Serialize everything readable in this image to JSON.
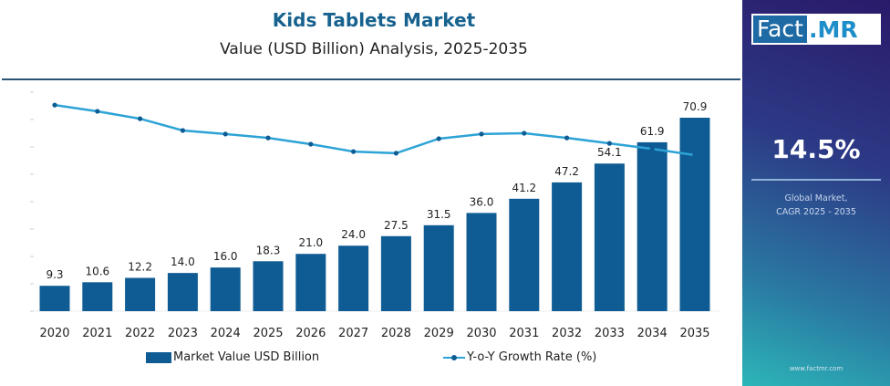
{
  "header": {
    "title": "Kids Tablets Market",
    "subtitle": "Value (USD Billion) Analysis, 2025-2035"
  },
  "panel": {
    "logo_left": "Fact",
    "logo_right": ".MR",
    "cagr": "14.5%",
    "cagr_label_1": "Global Market,",
    "cagr_label_2": "CAGR 2025 - 2035",
    "url": "www.factmr.com"
  },
  "legend": {
    "bar": "Market Value USD Billion",
    "line": "Y-o-Y Growth Rate (%)"
  },
  "colors": {
    "bar": "#0f5c94",
    "line": "#2da3d6",
    "marker": "#0f5c94",
    "title": "#17628f"
  },
  "chart_data": {
    "type": "bar+line",
    "title": "Kids Tablets Market",
    "subtitle": "Value (USD Billion) Analysis, 2025-2035",
    "categories": [
      "2020",
      "2021",
      "2022",
      "2023",
      "2024",
      "2025",
      "2026",
      "2027",
      "2028",
      "2029",
      "2030",
      "2031",
      "2032",
      "2033",
      "2034",
      "2035"
    ],
    "series": [
      {
        "name": "Market Value USD Billion",
        "type": "bar",
        "values": [
          9.3,
          10.6,
          12.2,
          14.0,
          16.0,
          18.3,
          21.0,
          24.0,
          27.5,
          31.5,
          36.0,
          41.2,
          47.2,
          54.1,
          61.9,
          70.9
        ],
        "labels": [
          "9.3",
          "10.6",
          "12.2",
          "14.0",
          "16.0",
          "18.3",
          "21.0",
          "24.0",
          "27.5",
          "31.5",
          "36.0",
          "41.2",
          "47.2",
          "54.1",
          "61.9",
          "70.9"
        ]
      },
      {
        "name": "Y-o-Y Growth Rate (%)",
        "type": "line",
        "values_relative_unlabeled_axis": [
          7.53,
          7.3,
          7.03,
          6.6,
          6.47,
          6.33,
          6.1,
          5.83,
          5.77,
          6.3,
          6.47,
          6.5,
          6.33,
          6.13,
          5.93,
          5.7
        ],
        "ylim": [
          0,
          8
        ]
      }
    ],
    "ylim": [
      0,
      80
    ],
    "y_tick_labels_shown": false,
    "grid": false,
    "legend_placement": "bottom"
  }
}
